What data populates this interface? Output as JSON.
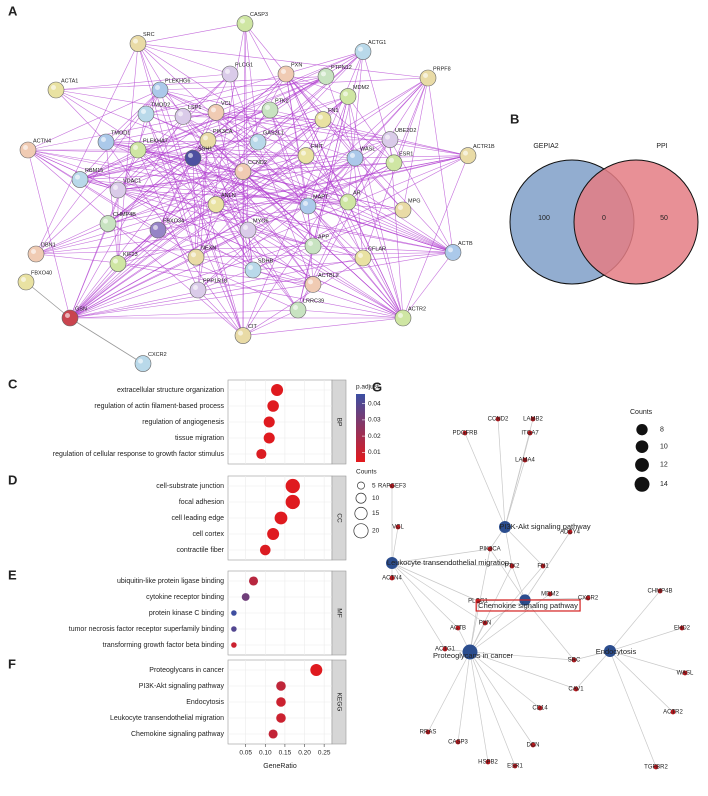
{
  "network_a": {
    "label": "A",
    "nodes": [
      "CASP3",
      "SRC",
      "ACTG1",
      "PLCG1",
      "PXN",
      "PTPN12",
      "ACTA1",
      "PLEKHG6",
      "MDM2",
      "PRPF8",
      "TMOD2",
      "LSP1",
      "VCL",
      "PTK2",
      "FN1",
      "TMOD1",
      "PLEKHA7",
      "PIK3CA",
      "GAS2L1",
      "UBE2D2",
      "ACTN4",
      "SSH1",
      "FHIT",
      "WASL",
      "ESR1",
      "ACTR1B",
      "RBM15",
      "VDAC1",
      "CCND2",
      "CHMP4B",
      "ANLN",
      "MAPT",
      "AR",
      "MPG",
      "FBXO34",
      "MYO6",
      "DBN1",
      "APP",
      "CFLAR",
      "ACTB",
      "KIF23",
      "NEXN",
      "SDHB",
      "PPP1R18",
      "ACTBL2",
      "LRRC39",
      "FBXO40",
      "GSN",
      "ACTR2",
      "CIT",
      "CXCR2"
    ]
  },
  "venn": {
    "label": "B",
    "sets": [
      {
        "name": "GEPIA2",
        "color": "#7f9fc8",
        "count": 100
      },
      {
        "name": "PPI",
        "color": "#e47c84",
        "count": 50
      }
    ],
    "intersection": 0
  },
  "chart_data": [
    {
      "type": "dot",
      "label": "C",
      "facet": "BP",
      "categories": [
        "extracellular structure organization",
        "regulation of actin filament-based process",
        "regulation of angiogenesis",
        "tissue migration",
        "regulation of cellular response to growth factor stimulus"
      ],
      "values": [
        0.13,
        0.12,
        0.11,
        0.11,
        0.09
      ],
      "counts": [
        14,
        13,
        12,
        12,
        10
      ],
      "p_adjust": [
        0.005,
        0.005,
        0.005,
        0.005,
        0.006
      ],
      "xlim": [
        0.005,
        0.27
      ]
    },
    {
      "type": "dot",
      "label": "D",
      "facet": "CC",
      "categories": [
        "cell-substrate junction",
        "focal adhesion",
        "cell leading edge",
        "cell cortex",
        "contractile fiber"
      ],
      "values": [
        0.17,
        0.17,
        0.14,
        0.12,
        0.1
      ],
      "counts": [
        20,
        20,
        16,
        14,
        11
      ],
      "p_adjust": [
        0.005,
        0.005,
        0.005,
        0.005,
        0.006
      ],
      "xlim": [
        0.005,
        0.27
      ]
    },
    {
      "type": "dot",
      "label": "E",
      "facet": "MF",
      "categories": [
        "ubiquitin-like protein ligase binding",
        "cytokine receptor binding",
        "protein kinase C binding",
        "tumor necrosis factor receptor superfamily binding",
        "transforming growth factor beta binding"
      ],
      "values": [
        0.07,
        0.05,
        0.02,
        0.02,
        0.02
      ],
      "counts": [
        8,
        6,
        3,
        3,
        3
      ],
      "p_adjust": [
        0.015,
        0.033,
        0.045,
        0.04,
        0.01
      ],
      "xlim": [
        0.005,
        0.27
      ]
    },
    {
      "type": "dot",
      "label": "F",
      "facet": "KEGG",
      "categories": [
        "Proteoglycans in cancer",
        "PI3K-Akt signaling pathway",
        "Endocytosis",
        "Leukocyte transendothelial migration",
        "Chemokine signaling pathway"
      ],
      "values": [
        0.23,
        0.14,
        0.14,
        0.14,
        0.12
      ],
      "counts": [
        14,
        9,
        9,
        9,
        8
      ],
      "p_adjust": [
        0.005,
        0.013,
        0.01,
        0.01,
        0.012
      ],
      "xlim": [
        0.005,
        0.27
      ],
      "xticks": [
        0.05,
        {
          "value": 0.1,
          "label": "0.10"
        },
        0.15,
        {
          "value": 0.2,
          "label": "0.20"
        },
        0.25
      ],
      "x_label": "GeneRatio"
    }
  ],
  "dot_legend": {
    "p_title": "p.adjust",
    "p_lim": [
      0.004,
      0.046
    ],
    "p_ticks": [
      0.04,
      0.03,
      0.02,
      0.01
    ],
    "low_color": "#e3191c",
    "high_color": "#3b4fa3",
    "size_title": "Counts",
    "sizes": [
      5,
      10,
      15,
      20
    ]
  },
  "network_g": {
    "label": "G",
    "highlight": 2,
    "pathways": [
      {
        "name": "PI3K-Akt signaling pathway",
        "counts": 9
      },
      {
        "name": "Leukocyte transendothelial migration",
        "counts": 9
      },
      {
        "name": "Chemokine signaling pathway",
        "counts": 8
      },
      {
        "name": "Proteoglycans in cancer",
        "counts": 14
      },
      {
        "name": "Endocytosis",
        "counts": 9
      }
    ],
    "genes": [
      {
        "name": "CCND2",
        "pathways": [
          0
        ]
      },
      {
        "name": "LAMB2",
        "pathways": [
          0
        ]
      },
      {
        "name": "PDGFRB",
        "pathways": [
          0
        ]
      },
      {
        "name": "ITGA7",
        "pathways": [
          0
        ]
      },
      {
        "name": "LAMA4",
        "pathways": [
          0
        ]
      },
      {
        "name": "RAPGEF3",
        "pathways": [
          1
        ]
      },
      {
        "name": "VCL",
        "pathways": [
          1
        ]
      },
      {
        "name": "ADCY4",
        "pathways": [
          2
        ]
      },
      {
        "name": "PIK3CA",
        "pathways": [
          0,
          1,
          2,
          3
        ]
      },
      {
        "name": "PTK2",
        "pathways": [
          0,
          1,
          2,
          3
        ]
      },
      {
        "name": "FN1",
        "pathways": [
          0,
          3
        ]
      },
      {
        "name": "ACTN4",
        "pathways": [
          1
        ]
      },
      {
        "name": "MDM2",
        "pathways": [
          3
        ]
      },
      {
        "name": "CXCR2",
        "pathways": [
          2
        ]
      },
      {
        "name": "PLCG1",
        "pathways": [
          1,
          2,
          3
        ]
      },
      {
        "name": "CHMP4B",
        "pathways": [
          4
        ]
      },
      {
        "name": "PXN",
        "pathways": [
          1,
          2,
          3
        ]
      },
      {
        "name": "ACTB",
        "pathways": [
          1,
          3
        ]
      },
      {
        "name": "EHD2",
        "pathways": [
          4
        ]
      },
      {
        "name": "ACTG1",
        "pathways": [
          1,
          3
        ]
      },
      {
        "name": "SRC",
        "pathways": [
          2,
          3,
          4
        ]
      },
      {
        "name": "WASL",
        "pathways": [
          4
        ]
      },
      {
        "name": "CAV1",
        "pathways": [
          3,
          4
        ]
      },
      {
        "name": "CD14",
        "pathways": [
          3
        ]
      },
      {
        "name": "ACTR2",
        "pathways": [
          4
        ]
      },
      {
        "name": "RRAS",
        "pathways": [
          3
        ]
      },
      {
        "name": "CASP3",
        "pathways": [
          3
        ]
      },
      {
        "name": "HSPB2",
        "pathways": [
          3
        ]
      },
      {
        "name": "ESR1",
        "pathways": [
          3
        ]
      },
      {
        "name": "DCN",
        "pathways": [
          3
        ]
      },
      {
        "name": "TGFBR2",
        "pathways": [
          4
        ]
      }
    ],
    "legend_title": "Counts",
    "legend_sizes": [
      8,
      10,
      12,
      14
    ]
  }
}
